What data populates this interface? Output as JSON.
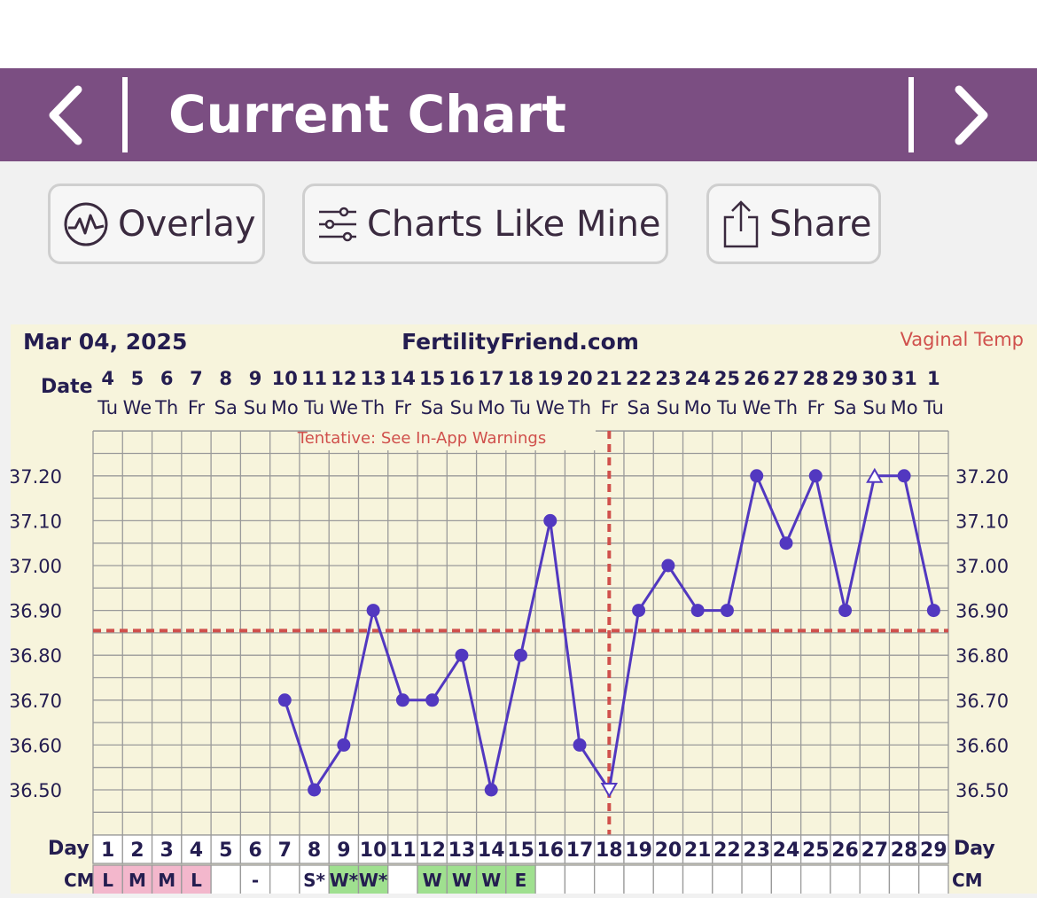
{
  "header": {
    "title": "Current Chart"
  },
  "toolbar": {
    "overlay_label": "Overlay",
    "charts_like_mine_label": "Charts Like Mine",
    "share_label": "Share"
  },
  "chart": {
    "date": "Mar 04, 2025",
    "site": "FertilityFriend.com",
    "temp_type": "Vaginal Temp",
    "warning": "Tentative: See In-App Warnings",
    "date_label": "Date",
    "day_label": "Day",
    "cm_label": "CM",
    "colors": {
      "line": "#5238c0",
      "coverline": "#d0504c",
      "cm_pink": "#f3b7cc",
      "cm_green": "#9fe08f",
      "bg": "#f7f4dc"
    }
  },
  "chart_data": {
    "type": "line",
    "dates": [
      "4",
      "5",
      "6",
      "7",
      "8",
      "9",
      "10",
      "11",
      "12",
      "13",
      "14",
      "15",
      "16",
      "17",
      "18",
      "19",
      "20",
      "21",
      "22",
      "23",
      "24",
      "25",
      "26",
      "27",
      "28",
      "29",
      "30",
      "31",
      "1"
    ],
    "weekdays": [
      "Tu",
      "We",
      "Th",
      "Fr",
      "Sa",
      "Su",
      "Mo",
      "Tu",
      "We",
      "Th",
      "Fr",
      "Sa",
      "Su",
      "Mo",
      "Tu",
      "We",
      "Th",
      "Fr",
      "Sa",
      "Su",
      "Mo",
      "Tu",
      "We",
      "Th",
      "Fr",
      "Sa",
      "Su",
      "Mo",
      "Tu"
    ],
    "days": [
      1,
      2,
      3,
      4,
      5,
      6,
      7,
      8,
      9,
      10,
      11,
      12,
      13,
      14,
      15,
      16,
      17,
      18,
      19,
      20,
      21,
      22,
      23,
      24,
      25,
      26,
      27,
      28,
      29
    ],
    "temps": [
      null,
      null,
      null,
      null,
      null,
      null,
      36.7,
      36.5,
      36.6,
      36.9,
      36.7,
      36.7,
      36.8,
      36.5,
      36.8,
      37.1,
      36.6,
      36.5,
      36.9,
      37.0,
      36.9,
      36.9,
      37.2,
      37.05,
      37.2,
      36.9,
      37.2,
      37.2,
      36.9
    ],
    "point_markers": [
      "",
      "",
      "",
      "",
      "",
      "",
      "dot",
      "dot",
      "dot",
      "dot",
      "dot",
      "dot",
      "dot",
      "dot",
      "dot",
      "dot",
      "dot",
      "triangle-down",
      "dot",
      "dot",
      "dot",
      "dot",
      "dot",
      "dot",
      "dot",
      "dot",
      "triangle-up",
      "dot",
      "dot"
    ],
    "y_ticks": [
      "37.20",
      "37.10",
      "37.00",
      "36.90",
      "36.80",
      "36.70",
      "36.60",
      "36.50"
    ],
    "ylim": [
      36.42,
      37.29
    ],
    "coverline": 36.855,
    "ovulation_day": 18,
    "cm": [
      "L",
      "M",
      "M",
      "L",
      "",
      "-",
      "",
      "S*",
      "W*",
      "W*",
      "",
      "W",
      "W",
      "W",
      "E",
      "",
      "",
      "",
      "",
      "",
      "",
      "",
      "",
      "",
      "",
      "",
      "",
      "",
      ""
    ],
    "cm_colors": [
      "pink",
      "pink",
      "pink",
      "pink",
      "",
      "",
      "",
      "",
      "green",
      "green",
      "",
      "green",
      "green",
      "green",
      "green",
      "",
      "",
      "",
      "",
      "",
      "",
      "",
      "",
      "",
      "",
      "",
      "",
      "",
      ""
    ],
    "grid": true
  }
}
